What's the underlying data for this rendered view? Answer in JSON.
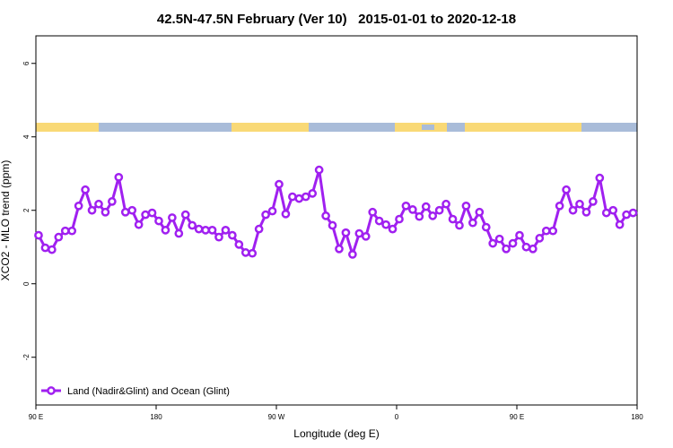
{
  "chart_data": {
    "type": "line",
    "title": "42.5N-47.5N February (Ver 10)   2015-01-01 to 2020-12-18",
    "x_label": "Longitude (deg E)",
    "y_label": "XCO2 - MLO trend (ppm)",
    "xlim": [
      90,
      540
    ],
    "ylim": [
      -3.3,
      6.75
    ],
    "xticks": [
      {
        "value": 90,
        "label": "90 E"
      },
      180,
      {
        "value": 270,
        "label": "90 W"
      },
      {
        "value": 360,
        "label": "0"
      },
      {
        "value": 450,
        "label": "90 E"
      },
      {
        "value": 540,
        "label": "180"
      }
    ],
    "yticks": [
      -2,
      0,
      2,
      4,
      6
    ],
    "legend": "bottomleft",
    "x": [
      92,
      97,
      102,
      107,
      112,
      117,
      122,
      127,
      132,
      137,
      142,
      147,
      152,
      157,
      162,
      167,
      172,
      177,
      182,
      187,
      192,
      197,
      202,
      207,
      212,
      217,
      222,
      227,
      232,
      237,
      242,
      247,
      252,
      257,
      262,
      267,
      272,
      277,
      282,
      287,
      292,
      297,
      302,
      307,
      312,
      317,
      322,
      327,
      332,
      337,
      342,
      347,
      352,
      357,
      362,
      367,
      372,
      377,
      382,
      387,
      392,
      397,
      402,
      407,
      412,
      417,
      422,
      427,
      432,
      437,
      442,
      447,
      452,
      457,
      462,
      467,
      472,
      477,
      482,
      487,
      492,
      497,
      502,
      507,
      512,
      517,
      522,
      527,
      532,
      537
    ],
    "series": [
      {
        "name": "Land (Nadir&Glint) and Ocean (Glint)",
        "color": "#a020f0",
        "values": [
          1.32,
          0.98,
          0.93,
          1.27,
          1.44,
          1.44,
          2.12,
          2.56,
          2.0,
          2.17,
          1.95,
          2.24,
          2.9,
          1.95,
          2.0,
          1.61,
          1.88,
          1.93,
          1.71,
          1.46,
          1.8,
          1.37,
          1.88,
          1.59,
          1.49,
          1.46,
          1.46,
          1.27,
          1.46,
          1.32,
          1.07,
          0.85,
          0.83,
          1.49,
          1.88,
          1.98,
          2.71,
          1.9,
          2.37,
          2.32,
          2.37,
          2.46,
          3.1,
          1.85,
          1.59,
          0.95,
          1.39,
          0.8,
          1.37,
          1.29,
          1.95,
          1.71,
          1.61,
          1.49,
          1.76,
          2.12,
          2.02,
          1.83,
          2.1,
          1.85,
          2.0,
          2.17,
          1.76,
          1.59,
          2.12,
          1.66,
          1.95,
          1.54,
          1.1,
          1.22,
          0.95,
          1.1,
          1.32,
          1.0,
          0.95,
          1.24,
          1.44,
          1.44,
          2.12,
          2.56,
          2.0,
          2.17,
          1.95,
          2.24,
          2.88,
          1.93,
          2.0,
          1.61,
          1.88,
          1.93
        ]
      }
    ]
  }
}
